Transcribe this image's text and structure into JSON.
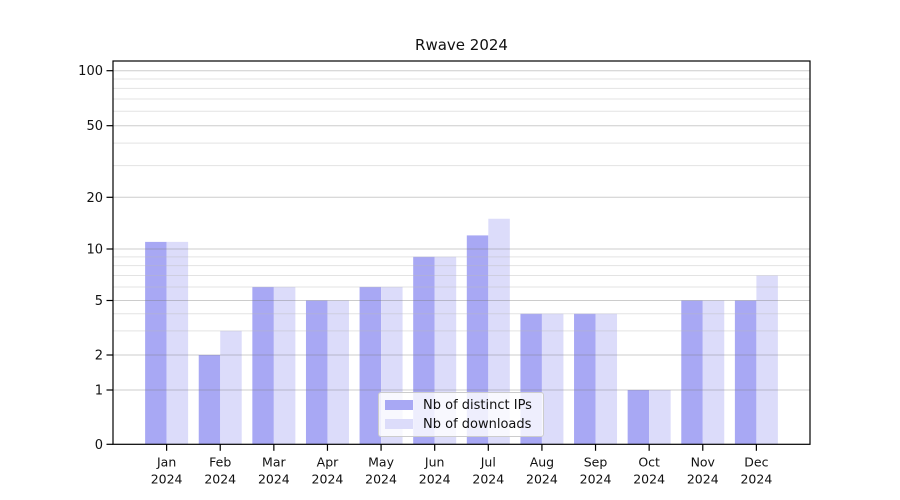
{
  "chart_data": {
    "type": "bar",
    "title": "Rwave 2024",
    "categories": [
      "Jan",
      "Feb",
      "Mar",
      "Apr",
      "May",
      "Jun",
      "Jul",
      "Aug",
      "Sep",
      "Oct",
      "Nov",
      "Dec"
    ],
    "category_sub_label": "2024",
    "series": [
      {
        "name": "Nb of distinct IPs",
        "color": "#a8a8f4",
        "values": [
          11,
          2,
          6,
          5,
          6,
          9,
          12,
          4,
          4,
          1,
          5,
          5
        ]
      },
      {
        "name": "Nb of downloads",
        "color": "#dcdcfa",
        "values": [
          11,
          3,
          6,
          5,
          6,
          9,
          15,
          4,
          4,
          1,
          5,
          7
        ]
      }
    ],
    "y_axis": {
      "scale": "log-like",
      "tick_labels": [
        "0",
        "1",
        "2",
        "5",
        "10",
        "20",
        "50",
        "100"
      ],
      "tick_values": [
        0,
        1,
        2,
        5,
        10,
        20,
        50,
        100
      ],
      "minor_gridline_values": [
        3,
        4,
        6,
        7,
        8,
        9,
        30,
        40,
        60,
        70,
        80,
        90
      ]
    },
    "legend": {
      "position": "bottom-center",
      "entries": [
        "Nb of distinct IPs",
        "Nb of downloads"
      ]
    },
    "grid": true
  },
  "colors": {
    "background": "#ffffff",
    "axis": "#000000",
    "major_grid": "rgba(120,120,120,0.38)",
    "minor_grid": "rgba(185,185,185,0.40)",
    "tick_text": "#111111",
    "legend_border": "#cccccc"
  }
}
